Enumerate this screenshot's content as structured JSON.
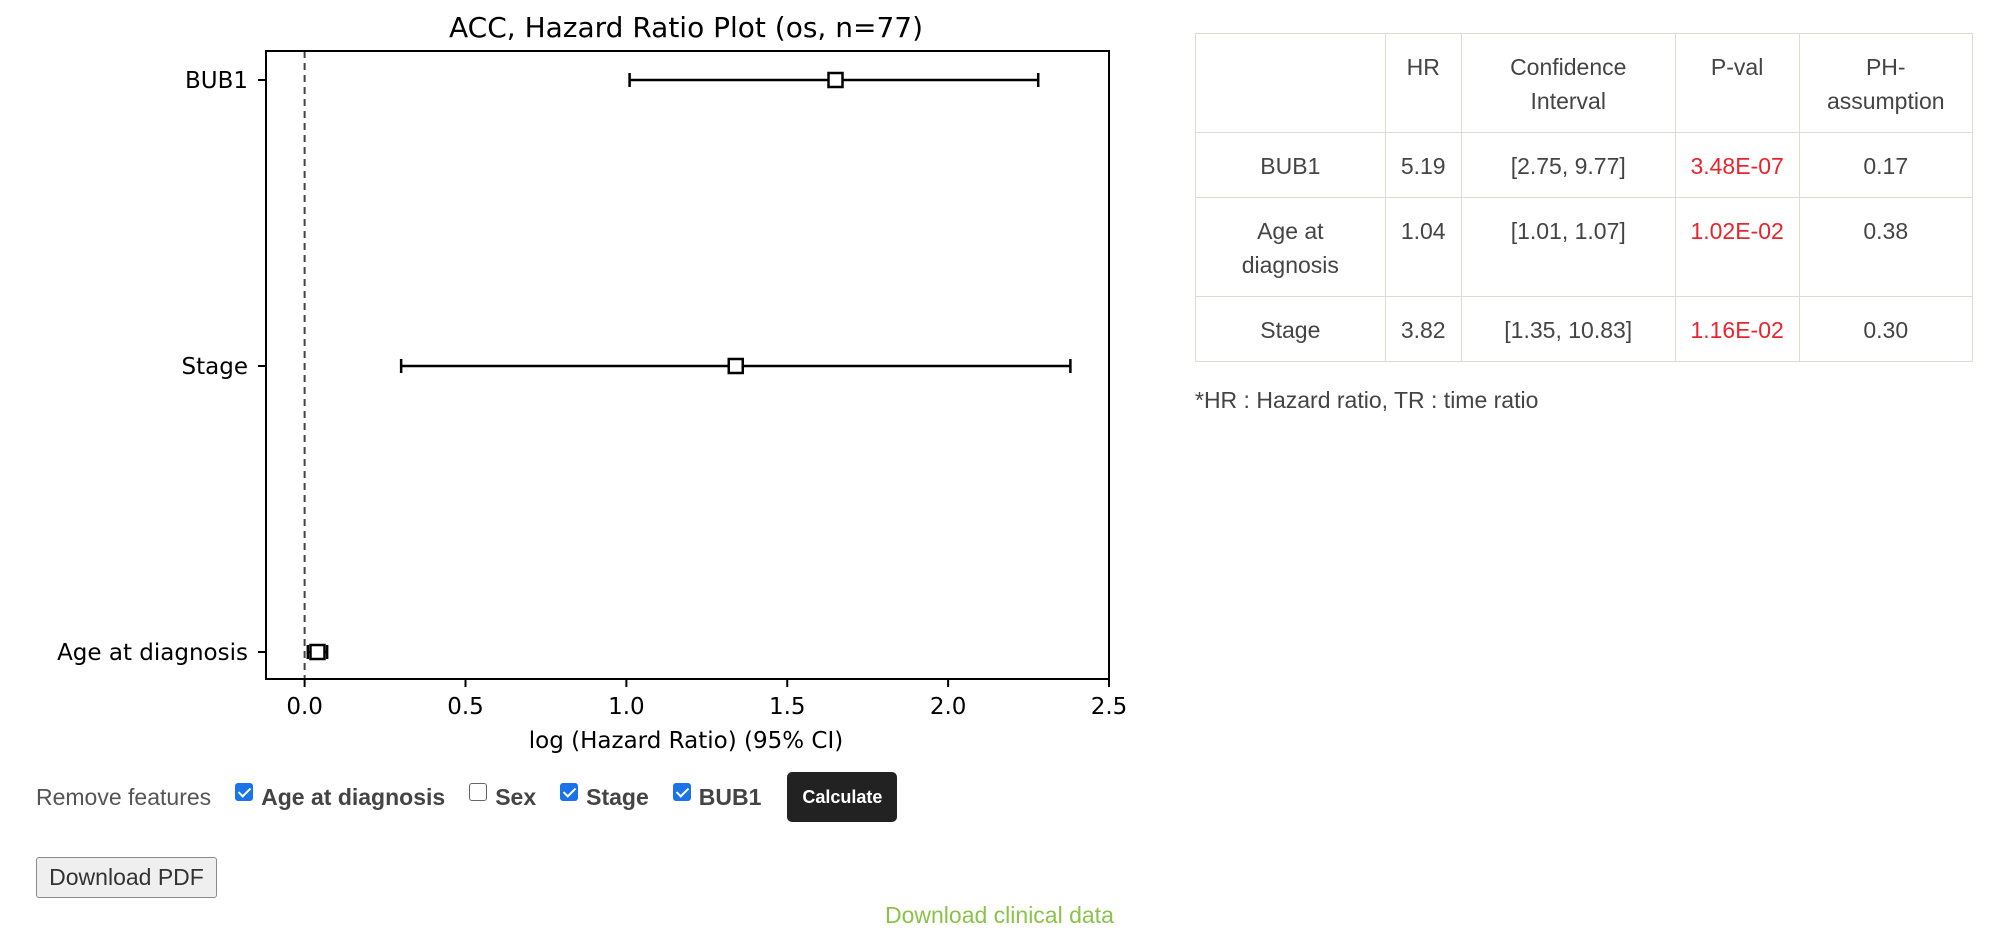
{
  "chart_data": {
    "type": "forest",
    "title": "ACC, Hazard Ratio Plot (os, n=77)",
    "xlabel": "log (Hazard Ratio) (95% CI)",
    "ylabel": "",
    "xlim": [
      -0.12,
      2.5
    ],
    "xticks": [
      0.0,
      0.5,
      1.0,
      1.5,
      2.0,
      2.5
    ],
    "xtick_labels": [
      "0.0",
      "0.5",
      "1.0",
      "1.5",
      "2.0",
      "2.5"
    ],
    "reference_line": 0.0,
    "features": [
      {
        "label": "BUB1",
        "log_hr": 1.65,
        "ci_low": 1.01,
        "ci_high": 2.28
      },
      {
        "label": "Stage",
        "log_hr": 1.34,
        "ci_low": 0.3,
        "ci_high": 2.38
      },
      {
        "label": "Age at diagnosis",
        "log_hr": 0.04,
        "ci_low": 0.01,
        "ci_high": 0.07
      }
    ]
  },
  "table": {
    "headers": [
      "",
      "HR",
      "Confidence Interval",
      "P-val",
      "PH-assumption"
    ],
    "rows": [
      {
        "feature": "BUB1",
        "hr": "5.19",
        "ci": "[2.75, 9.77]",
        "pval": "3.48E-07",
        "ph": "0.17"
      },
      {
        "feature": "Age at diagnosis",
        "hr": "1.04",
        "ci": "[1.01, 1.07]",
        "pval": "1.02E-02",
        "ph": "0.38"
      },
      {
        "feature": "Stage",
        "hr": "3.82",
        "ci": "[1.35, 10.83]",
        "pval": "1.16E-02",
        "ph": "0.30"
      }
    ],
    "footnote": "*HR : Hazard ratio, TR : time ratio"
  },
  "controls": {
    "remove_label": "Remove features",
    "features": [
      {
        "label": "Age at diagnosis",
        "checked": true
      },
      {
        "label": "Sex",
        "checked": false
      },
      {
        "label": "Stage",
        "checked": true
      },
      {
        "label": "BUB1",
        "checked": true
      }
    ],
    "calculate_label": "Calculate",
    "download_pdf_label": "Download PDF",
    "download_data_label": "Download clinical data"
  },
  "colors": {
    "pval": "#e8242d",
    "link": "#8bc34a",
    "button_dark": "#222222"
  }
}
